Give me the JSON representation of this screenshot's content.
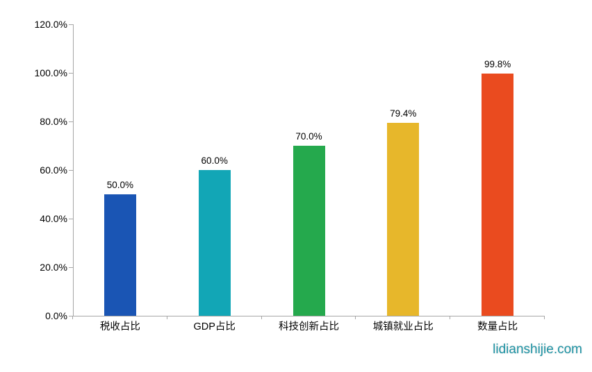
{
  "watermark": "lidianshijie.com",
  "colors": {
    "axis": "#a6a6a6",
    "text": "#000000",
    "watermark": "#1e93a4"
  },
  "chart_data": {
    "type": "bar",
    "title": "",
    "xlabel": "",
    "ylabel": "",
    "categories": [
      "税收占比",
      "GDP占比",
      "科技创新占比",
      "城镇就业占比",
      "数量占比"
    ],
    "values": [
      50.0,
      60.0,
      70.0,
      79.4,
      99.8
    ],
    "data_labels": [
      "50.0%",
      "60.0%",
      "70.0%",
      "79.4%",
      "99.8%"
    ],
    "bar_colors": [
      "#1a55b4",
      "#12a6b6",
      "#25a94d",
      "#e7b72b",
      "#ea4b1f"
    ],
    "ylim": [
      0,
      120
    ],
    "ytick_step": 20,
    "ytick_labels": [
      "0.0%",
      "20.0%",
      "40.0%",
      "60.0%",
      "80.0%",
      "100.0%",
      "120.0%"
    ],
    "grid": false,
    "legend": false
  }
}
